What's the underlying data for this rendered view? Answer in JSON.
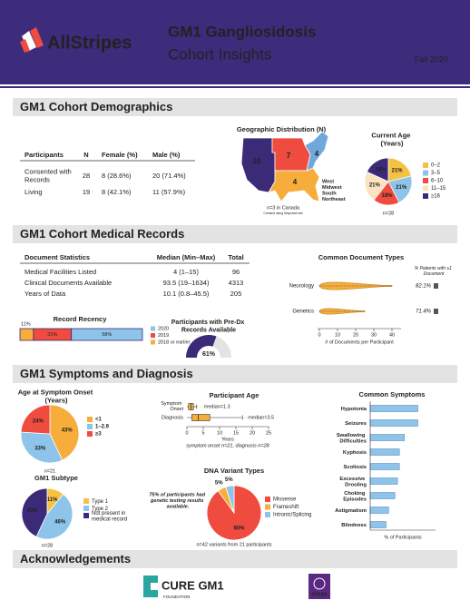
{
  "header": {
    "logo": "AllStripes",
    "title": "GM1 Gangliosidosis",
    "subtitle": "Cohort Insights",
    "date": "Fall 2020"
  },
  "sections": [
    "GM1 Cohort Demographics",
    "GM1 Cohort Medical Records",
    "GM1 Symptoms and Diagnosis",
    "Acknowledgements"
  ],
  "demographics_table": {
    "columns": [
      "Participants",
      "N",
      "Female (%)",
      "Male (%)"
    ],
    "rows": [
      [
        "Consented with Records",
        "28",
        "8 (28.6%)",
        "20 (71.4%)"
      ],
      [
        "Living",
        "19",
        "8 (42.1%)",
        "11 (57.9%)"
      ]
    ]
  },
  "geo": {
    "title": "Geographic Distribution (N)",
    "regions": [
      {
        "name": "West",
        "value": 10,
        "color": "#3b2a78"
      },
      {
        "name": "Midwest",
        "value": 7,
        "color": "#ef4b3f"
      },
      {
        "name": "South",
        "value": 4,
        "color": "#f6ad3c"
      },
      {
        "name": "Northeast",
        "value": 4,
        "color": "#6fa8dc"
      }
    ],
    "note": "n=3 in Canada",
    "credit": "Created using Mapchart.net"
  },
  "current_age": {
    "type": "pie",
    "title": "Current Age (Years)",
    "categories": [
      "0–2",
      "3–5",
      "6–10",
      "11–15",
      "≥16"
    ],
    "values": [
      21,
      21,
      18,
      21,
      18
    ],
    "value_labels": [
      "21%",
      "21%",
      "18%",
      "21%",
      "18%"
    ],
    "colors": [
      "#f7c244",
      "#8ec3ea",
      "#ef4b3f",
      "#fbe3c0",
      "#3b2a78"
    ],
    "n": "n=28"
  },
  "records_table": {
    "columns": [
      "Document Statistics",
      "Median (Min–Max)",
      "Total"
    ],
    "rows": [
      [
        "Medical Facilities Listed",
        "4 (1–15)",
        "96"
      ],
      [
        "Clinical Documents Available",
        "93.5 (19–1634)",
        "4313"
      ],
      [
        "Years of Data",
        "10.1 (0.8–45.5)",
        "205"
      ]
    ]
  },
  "doc_types": {
    "type": "violin",
    "title": "Common Document Types",
    "categories": [
      "Neurology",
      "Genetics"
    ],
    "ranges": [
      [
        0,
        40
      ],
      [
        0,
        25
      ]
    ],
    "pct_header": "% Patients with ≥1 Document",
    "pct": [
      82.1,
      71.4
    ],
    "pct_labels": [
      "82.1%",
      "71.4%"
    ],
    "xlim": [
      0,
      45
    ],
    "xticks": [
      0,
      10,
      20,
      30,
      40
    ],
    "xlabel": "# of Documents per Participant",
    "color": "#f6ad3c"
  },
  "recency": {
    "type": "stacked_bar",
    "title": "Record Recency",
    "series": [
      {
        "name": "2020",
        "value": 58,
        "label": "58%",
        "color": "#8ec3ea"
      },
      {
        "name": "2019",
        "value": 31,
        "label": "31%",
        "color": "#ef4b3f"
      },
      {
        "name": "2018 or earlier",
        "value": 11,
        "label": "11%",
        "color": "#f6ad3c"
      }
    ]
  },
  "predx": {
    "type": "gauge",
    "title": "Participants with Pre-Dx Records Available",
    "value": 61,
    "value_label": "61%",
    "color": "#3b2a78"
  },
  "onset": {
    "type": "pie",
    "title": "Age at Symptom Onset (Years)",
    "categories": [
      "<1",
      "1–2.9",
      "≥3"
    ],
    "values": [
      43,
      33,
      24
    ],
    "value_labels": [
      "43%",
      "33%",
      "24%"
    ],
    "colors": [
      "#f6ad3c",
      "#8ec3ea",
      "#ef4b3f"
    ],
    "n": "n=21"
  },
  "participant_age": {
    "type": "box",
    "title": "Participant Age",
    "categories": [
      "Symptom Onset",
      "Diagnosis"
    ],
    "min": [
      0,
      0
    ],
    "q1": [
      0.5,
      1.5
    ],
    "median": [
      1.3,
      3.5
    ],
    "q3": [
      2,
      7
    ],
    "max": [
      3,
      17
    ],
    "median_labels": [
      "median=1.3",
      "median=3.5"
    ],
    "xlim": [
      0,
      25
    ],
    "xticks": [
      0,
      5,
      10,
      15,
      20,
      25
    ],
    "xlabel": "Years",
    "note": "symptom onset n=21, diagnosis n=28",
    "color": "#f6ad3c"
  },
  "symptoms": {
    "type": "hbar",
    "title": "Common Symptoms",
    "categories": [
      "Hypotonia",
      "Seizures",
      "Swallowing Difficulties",
      "Kyphosis",
      "Scoliosis",
      "Excessive Drooling",
      "Choking Episodes",
      "Astigmatism",
      "Blindness"
    ],
    "values": [
      75,
      75,
      54,
      46,
      46,
      43,
      39,
      29,
      25
    ],
    "xlim": [
      0,
      100
    ],
    "xlabel": "% of Participants",
    "color": "#8ec3ea"
  },
  "subtype": {
    "type": "pie",
    "title": "GM1 Subtype",
    "categories": [
      "Type 1",
      "Type 2",
      "Not present in medical record"
    ],
    "values": [
      11,
      46,
      43
    ],
    "value_labels": [
      "11%",
      "46%",
      "43%"
    ],
    "colors": [
      "#f7c244",
      "#8ec3ea",
      "#3b2a78"
    ],
    "n": "n=28"
  },
  "dna": {
    "type": "pie",
    "title": "DNA Variant Types",
    "categories": [
      "Missense",
      "Frameshift",
      "Intronic/Splicing"
    ],
    "values": [
      90,
      5,
      5
    ],
    "value_labels": [
      "90%",
      "5%",
      "5%"
    ],
    "colors": [
      "#ef4b3f",
      "#f6ad3c",
      "#8ec3ea"
    ],
    "note": "75% of participants had genetic testing results available.",
    "n": "n=42 variants from 21 participants"
  },
  "acknowledgements": {
    "cure_name": "CURE GM1",
    "cure_sub": "FOUNDATION",
    "ntsad": "NTSAD"
  }
}
